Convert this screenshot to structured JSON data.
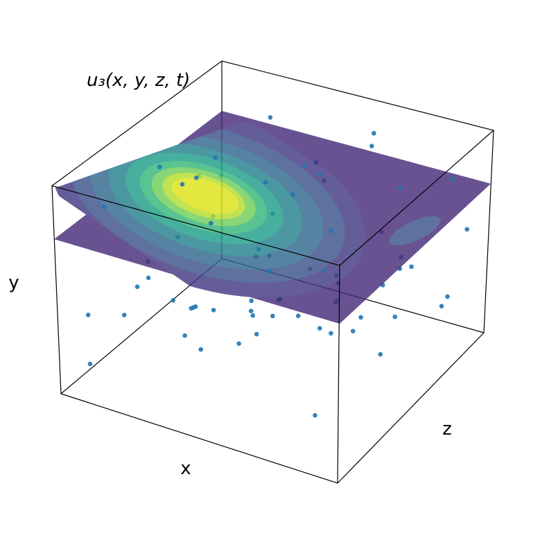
{
  "chart_data": {
    "type": "scatter3d",
    "title": "u₃(x, y, z, t)",
    "x_label": "x",
    "y_label": "y",
    "z_label": "z",
    "xlim": [
      0,
      1
    ],
    "ylim": [
      0,
      1
    ],
    "zlim": [
      0,
      1
    ],
    "plane_y": 0.74,
    "color": "#1f77b4",
    "x": [
      0.05,
      0.12,
      0.2,
      0.28,
      0.35,
      0.42,
      0.5,
      0.58,
      0.66,
      0.75,
      0.83,
      0.92,
      0.1,
      0.18,
      0.26,
      0.34,
      0.44,
      0.52,
      0.6,
      0.7,
      0.78,
      0.88,
      0.95,
      0.08,
      0.15,
      0.24,
      0.32,
      0.4,
      0.48,
      0.56,
      0.64,
      0.72,
      0.8,
      0.9,
      0.06,
      0.14,
      0.22,
      0.3,
      0.38,
      0.46,
      0.54,
      0.62,
      0.7,
      0.78,
      0.86,
      0.94,
      0.03,
      0.11,
      0.19,
      0.27,
      0.37,
      0.45,
      0.55,
      0.63,
      0.71,
      0.81,
      0.89,
      0.97,
      0.16,
      0.33,
      0.5,
      0.67,
      0.84,
      0.25,
      0.41,
      0.59,
      0.76,
      0.93,
      0.09,
      0.57
    ],
    "y": [
      0.1,
      0.3,
      0.5,
      0.2,
      0.4,
      0.15,
      0.35,
      0.55,
      0.25,
      0.45,
      0.12,
      0.6,
      0.65,
      0.05,
      0.28,
      0.52,
      0.62,
      0.08,
      0.42,
      0.18,
      0.58,
      0.32,
      0.7,
      0.38,
      0.22,
      0.6,
      0.1,
      0.48,
      0.3,
      0.66,
      0.14,
      0.5,
      0.36,
      0.2,
      0.8,
      0.9,
      0.85,
      0.95,
      0.78,
      0.88,
      0.82,
      0.92,
      0.8,
      0.86,
      0.9,
      0.84,
      0.25,
      0.45,
      0.15,
      0.68,
      0.04,
      0.56,
      0.26,
      0.4,
      0.64,
      0.1,
      0.46,
      0.3,
      0.76,
      0.98,
      0.77,
      0.94,
      0.79,
      0.02,
      0.7,
      0.06,
      0.72,
      0.5,
      0.55,
      0.97
    ],
    "z": [
      0.1,
      0.2,
      0.15,
      0.3,
      0.25,
      0.4,
      0.35,
      0.2,
      0.5,
      0.45,
      0.6,
      0.55,
      0.7,
      0.65,
      0.8,
      0.75,
      0.9,
      0.85,
      0.3,
      0.7,
      0.4,
      0.6,
      0.5,
      0.05,
      0.45,
      0.55,
      0.65,
      0.15,
      0.75,
      0.35,
      0.95,
      0.25,
      0.85,
      0.92,
      0.2,
      0.4,
      0.6,
      0.8,
      0.3,
      0.5,
      0.7,
      0.9,
      0.1,
      0.35,
      0.65,
      0.85,
      0.5,
      0.55,
      0.9,
      0.1,
      0.6,
      0.05,
      0.8,
      0.95,
      0.15,
      0.2,
      0.3,
      0.75,
      0.5,
      0.3,
      0.6,
      0.8,
      0.2,
      0.45,
      0.9,
      0.7,
      0.05,
      0.98,
      0.85,
      0.55
    ]
  }
}
